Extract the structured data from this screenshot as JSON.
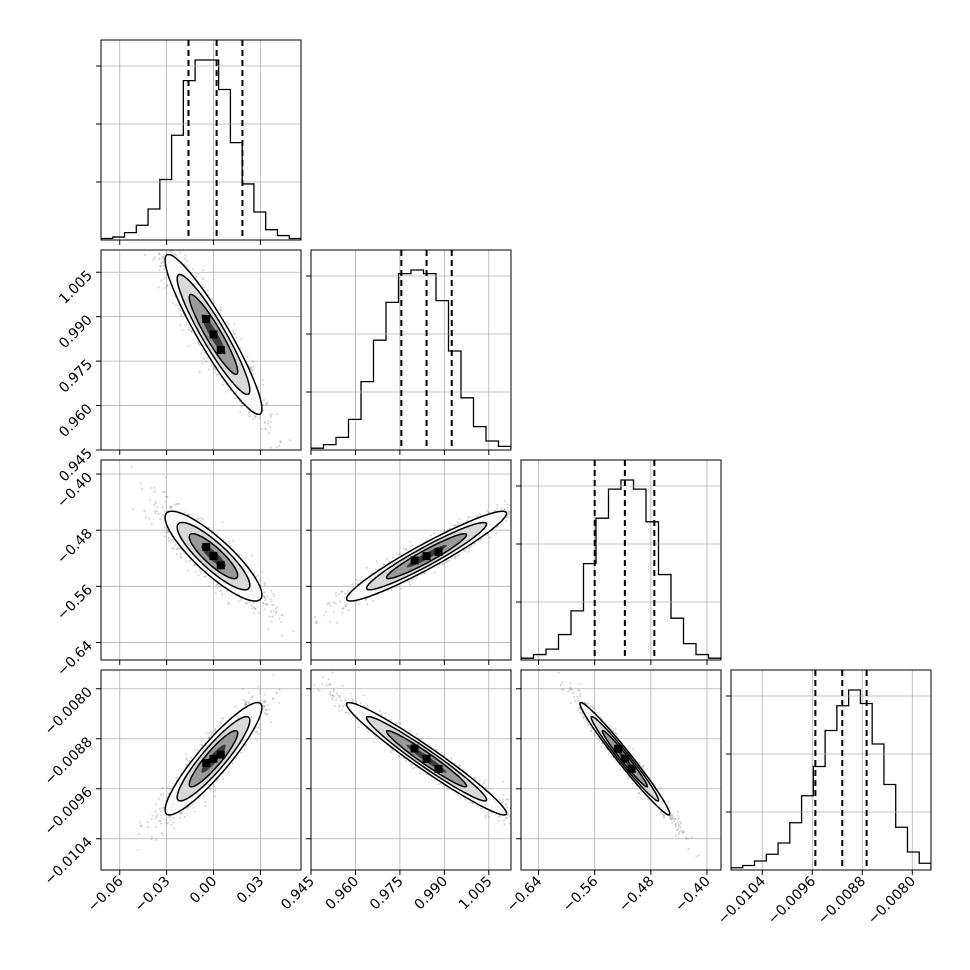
{
  "chart_data": {
    "type": "corner",
    "n_params": 4,
    "axis_labels": [
      "",
      "",
      "",
      ""
    ],
    "ranges": [
      [
        -0.072,
        0.056
      ],
      [
        0.945,
        1.0125
      ],
      [
        -0.665,
        -0.38
      ],
      [
        -0.0109,
        -0.0077
      ]
    ],
    "x_ticks": [
      {
        "values": [
          -0.06,
          -0.03,
          0.0,
          0.03
        ],
        "labels": [
          "−0.06",
          "−0.03",
          "0.00",
          "0.03"
        ]
      },
      {
        "values": [
          0.945,
          0.96,
          0.975,
          0.99,
          1.005
        ],
        "labels": [
          "0.945",
          "0.960",
          "0.975",
          "0.990",
          "1.005"
        ]
      },
      {
        "values": [
          -0.64,
          -0.56,
          -0.48,
          -0.4
        ],
        "labels": [
          "−0.64",
          "−0.56",
          "−0.48",
          "−0.40"
        ]
      },
      {
        "values": [
          -0.0104,
          -0.0096,
          -0.0088,
          -0.008
        ],
        "labels": [
          "−0.0104",
          "−0.0096",
          "−0.0088",
          "−0.0080"
        ]
      }
    ],
    "y_ticks": [
      null,
      {
        "values": [
          0.945,
          0.96,
          0.975,
          0.99,
          1.005
        ],
        "labels": [
          "0.945",
          "0.960",
          "0.975",
          "0.990",
          "1.005"
        ]
      },
      {
        "values": [
          -0.64,
          -0.56,
          -0.48,
          -0.4
        ],
        "labels": [
          "−0.64",
          "−0.56",
          "−0.48",
          "−0.40"
        ]
      },
      {
        "values": [
          -0.0104,
          -0.0096,
          -0.0088,
          -0.008
        ],
        "labels": [
          "−0.0104",
          "−0.0096",
          "−0.0088",
          "−0.0080"
        ]
      }
    ],
    "quantiles": [
      [
        -0.016,
        0.002,
        0.0185
      ],
      [
        0.9755,
        0.984,
        0.9925
      ],
      [
        -0.56,
        -0.517,
        -0.475
      ],
      [
        -0.00955,
        -0.00912,
        -0.00873
      ]
    ],
    "histograms": [
      [
        1,
        2,
        5,
        10,
        21,
        41,
        71,
        108,
        122,
        122,
        102,
        66,
        38,
        19,
        7,
        3,
        1
      ],
      [
        1,
        3,
        7,
        17,
        38,
        61,
        82,
        98,
        100,
        98,
        83,
        55,
        29,
        13,
        5,
        2
      ],
      [
        1,
        3,
        6,
        14,
        27,
        53,
        78,
        94,
        99,
        94,
        76,
        47,
        23,
        9,
        3,
        1
      ],
      [
        1,
        2,
        4,
        7,
        12,
        21,
        33,
        46,
        62,
        73,
        80,
        74,
        56,
        38,
        19,
        8,
        3
      ]
    ],
    "joint": [
      {
        "x": 0,
        "y": 1,
        "mean": [
          0.0,
          0.984
        ],
        "sd": [
          0.0155,
          0.0135
        ],
        "corr": -0.93
      },
      {
        "x": 0,
        "y": 2,
        "mean": [
          0.0,
          -0.517
        ],
        "sd": [
          0.0155,
          0.032
        ],
        "corr": -0.86
      },
      {
        "x": 0,
        "y": 3,
        "mean": [
          0.0,
          -0.00912
        ],
        "sd": [
          0.0155,
          0.00045
        ],
        "corr": 0.91
      },
      {
        "x": 1,
        "y": 2,
        "mean": [
          0.984,
          -0.517
        ],
        "sd": [
          0.0135,
          0.032
        ],
        "corr": 0.95
      },
      {
        "x": 1,
        "y": 3,
        "mean": [
          0.984,
          -0.00912
        ],
        "sd": [
          0.0135,
          0.00045
        ],
        "corr": -0.97
      },
      {
        "x": 2,
        "y": 3,
        "mean": [
          -0.517,
          -0.00912
        ],
        "sd": [
          0.032,
          0.00045
        ],
        "corr": -0.98
      }
    ],
    "grid": true,
    "colors": {
      "contour": "#000000",
      "points": "#808080",
      "grid": "#b0b0b0"
    }
  }
}
